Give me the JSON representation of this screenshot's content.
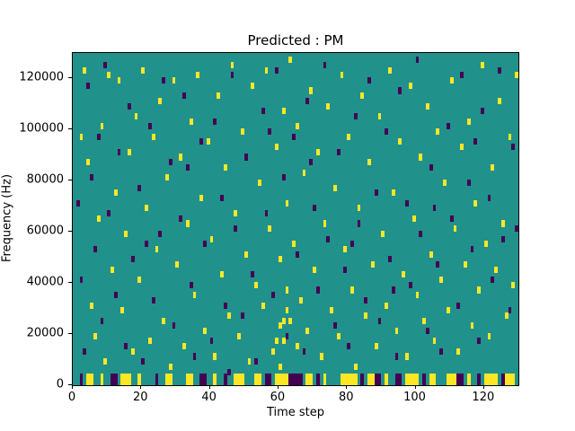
{
  "chart_data": {
    "type": "heatmap",
    "title": "Predicted : PM",
    "xlabel": "Time step",
    "ylabel": "Frequency (Hz)",
    "xlim": [
      0,
      130
    ],
    "ylim": [
      0,
      130000
    ],
    "x_ticks": [
      0,
      20,
      40,
      60,
      80,
      100,
      120
    ],
    "y_ticks": [
      0,
      20000,
      40000,
      60000,
      80000,
      100000,
      120000
    ],
    "grid": false,
    "legend": "none",
    "colors": {
      "background": "#21918c",
      "yellow": "#fde725",
      "purple": "#440154"
    },
    "cell": {
      "width_steps": 1,
      "height_hz": 2500,
      "bottom_height_hz": 4500
    },
    "yellow_cells": [
      [
        2,
        96000
      ],
      [
        3,
        122000
      ],
      [
        4,
        86000
      ],
      [
        5,
        30000
      ],
      [
        6,
        18000
      ],
      [
        7,
        64000
      ],
      [
        8,
        100000
      ],
      [
        9,
        8000
      ],
      [
        10,
        120000
      ],
      [
        11,
        44000
      ],
      [
        12,
        74000
      ],
      [
        13,
        118000
      ],
      [
        14,
        28000
      ],
      [
        15,
        58000
      ],
      [
        16,
        90000
      ],
      [
        17,
        12000
      ],
      [
        18,
        104000
      ],
      [
        19,
        40000
      ],
      [
        20,
        122000
      ],
      [
        21,
        68000
      ],
      [
        22,
        16000
      ],
      [
        23,
        96000
      ],
      [
        24,
        52000
      ],
      [
        25,
        110000
      ],
      [
        26,
        24000
      ],
      [
        27,
        80000
      ],
      [
        28,
        6000
      ],
      [
        29,
        118000
      ],
      [
        30,
        46000
      ],
      [
        31,
        88000
      ],
      [
        32,
        14000
      ],
      [
        33,
        62000
      ],
      [
        34,
        102000
      ],
      [
        35,
        34000
      ],
      [
        36,
        120000
      ],
      [
        37,
        72000
      ],
      [
        38,
        20000
      ],
      [
        39,
        94000
      ],
      [
        40,
        56000
      ],
      [
        41,
        10000
      ],
      [
        42,
        112000
      ],
      [
        43,
        42000
      ],
      [
        44,
        84000
      ],
      [
        45,
        26000
      ],
      [
        46,
        124000
      ],
      [
        47,
        66000
      ],
      [
        48,
        18000
      ],
      [
        49,
        98000
      ],
      [
        50,
        50000
      ],
      [
        51,
        8000
      ],
      [
        52,
        116000
      ],
      [
        53,
        38000
      ],
      [
        54,
        78000
      ],
      [
        55,
        30000
      ],
      [
        56,
        122000
      ],
      [
        57,
        60000
      ],
      [
        58,
        12000
      ],
      [
        59,
        92000
      ],
      [
        59,
        16000
      ],
      [
        60,
        48000
      ],
      [
        60,
        22000
      ],
      [
        60,
        6000
      ],
      [
        61,
        106000
      ],
      [
        61,
        16000
      ],
      [
        61,
        24000
      ],
      [
        62,
        36000
      ],
      [
        62,
        70000
      ],
      [
        62,
        28000
      ],
      [
        63,
        24000
      ],
      [
        63,
        126000
      ],
      [
        64,
        54000
      ],
      [
        65,
        14000
      ],
      [
        65,
        100000
      ],
      [
        66,
        32000
      ],
      [
        67,
        82000
      ],
      [
        68,
        20000
      ],
      [
        69,
        114000
      ],
      [
        70,
        44000
      ],
      [
        71,
        90000
      ],
      [
        72,
        10000
      ],
      [
        73,
        62000
      ],
      [
        74,
        108000
      ],
      [
        75,
        28000
      ],
      [
        76,
        76000
      ],
      [
        77,
        18000
      ],
      [
        78,
        120000
      ],
      [
        79,
        52000
      ],
      [
        80,
        96000
      ],
      [
        81,
        36000
      ],
      [
        82,
        6000
      ],
      [
        83,
        68000
      ],
      [
        84,
        112000
      ],
      [
        85,
        26000
      ],
      [
        86,
        86000
      ],
      [
        87,
        46000
      ],
      [
        88,
        14000
      ],
      [
        89,
        104000
      ],
      [
        90,
        58000
      ],
      [
        91,
        30000
      ],
      [
        92,
        122000
      ],
      [
        93,
        74000
      ],
      [
        94,
        20000
      ],
      [
        95,
        94000
      ],
      [
        96,
        42000
      ],
      [
        97,
        10000
      ],
      [
        98,
        116000
      ],
      [
        99,
        64000
      ],
      [
        100,
        34000
      ],
      [
        101,
        88000
      ],
      [
        102,
        24000
      ],
      [
        103,
        108000
      ],
      [
        104,
        50000
      ],
      [
        105,
        16000
      ],
      [
        106,
        98000
      ],
      [
        107,
        40000
      ],
      [
        108,
        78000
      ],
      [
        109,
        28000
      ],
      [
        110,
        118000
      ],
      [
        111,
        60000
      ],
      [
        112,
        12000
      ],
      [
        113,
        92000
      ],
      [
        114,
        46000
      ],
      [
        115,
        102000
      ],
      [
        116,
        22000
      ],
      [
        117,
        70000
      ],
      [
        118,
        36000
      ],
      [
        119,
        124000
      ],
      [
        120,
        54000
      ],
      [
        121,
        18000
      ],
      [
        122,
        84000
      ],
      [
        123,
        44000
      ],
      [
        124,
        110000
      ],
      [
        125,
        62000
      ],
      [
        126,
        26000
      ],
      [
        127,
        96000
      ],
      [
        128,
        38000
      ],
      [
        129,
        120000
      ]
    ],
    "purple_cells": [
      [
        1,
        70000
      ],
      [
        2,
        40000
      ],
      [
        3,
        12000
      ],
      [
        4,
        116000
      ],
      [
        5,
        80000
      ],
      [
        6,
        52000
      ],
      [
        7,
        96000
      ],
      [
        8,
        24000
      ],
      [
        9,
        124000
      ],
      [
        10,
        66000
      ],
      [
        12,
        34000
      ],
      [
        13,
        90000
      ],
      [
        15,
        14000
      ],
      [
        16,
        108000
      ],
      [
        17,
        48000
      ],
      [
        19,
        76000
      ],
      [
        20,
        8000
      ],
      [
        21,
        54000
      ],
      [
        22,
        100000
      ],
      [
        23,
        32000
      ],
      [
        25,
        58000
      ],
      [
        26,
        118000
      ],
      [
        28,
        86000
      ],
      [
        29,
        22000
      ],
      [
        31,
        64000
      ],
      [
        32,
        112000
      ],
      [
        33,
        84000
      ],
      [
        34,
        38000
      ],
      [
        35,
        10000
      ],
      [
        37,
        94000
      ],
      [
        38,
        54000
      ],
      [
        40,
        16000
      ],
      [
        41,
        102000
      ],
      [
        43,
        72000
      ],
      [
        44,
        30000
      ],
      [
        45,
        4000
      ],
      [
        46,
        120000
      ],
      [
        47,
        60000
      ],
      [
        49,
        26000
      ],
      [
        50,
        88000
      ],
      [
        52,
        42000
      ],
      [
        53,
        8000
      ],
      [
        55,
        106000
      ],
      [
        56,
        66000
      ],
      [
        57,
        98000
      ],
      [
        58,
        34000
      ],
      [
        59,
        122000
      ],
      [
        61,
        80000
      ],
      [
        62,
        18000
      ],
      [
        64,
        96000
      ],
      [
        65,
        50000
      ],
      [
        67,
        12000
      ],
      [
        68,
        110000
      ],
      [
        69,
        86000
      ],
      [
        70,
        68000
      ],
      [
        71,
        36000
      ],
      [
        73,
        124000
      ],
      [
        74,
        56000
      ],
      [
        76,
        22000
      ],
      [
        77,
        90000
      ],
      [
        79,
        44000
      ],
      [
        80,
        14000
      ],
      [
        81,
        54000
      ],
      [
        82,
        104000
      ],
      [
        83,
        62000
      ],
      [
        85,
        32000
      ],
      [
        86,
        118000
      ],
      [
        88,
        74000
      ],
      [
        89,
        24000
      ],
      [
        91,
        98000
      ],
      [
        92,
        48000
      ],
      [
        93,
        36000
      ],
      [
        94,
        10000
      ],
      [
        95,
        114000
      ],
      [
        97,
        70000
      ],
      [
        98,
        38000
      ],
      [
        100,
        126000
      ],
      [
        101,
        58000
      ],
      [
        103,
        20000
      ],
      [
        104,
        84000
      ],
      [
        105,
        68000
      ],
      [
        106,
        46000
      ],
      [
        107,
        12000
      ],
      [
        109,
        100000
      ],
      [
        110,
        64000
      ],
      [
        112,
        30000
      ],
      [
        113,
        120000
      ],
      [
        115,
        78000
      ],
      [
        116,
        52000
      ],
      [
        117,
        94000
      ],
      [
        118,
        16000
      ],
      [
        119,
        106000
      ],
      [
        121,
        72000
      ],
      [
        122,
        40000
      ],
      [
        124,
        122000
      ],
      [
        125,
        56000
      ],
      [
        127,
        28000
      ],
      [
        128,
        92000
      ],
      [
        129,
        60000
      ]
    ],
    "bottom_yellow_bars": [
      [
        4,
        2
      ],
      [
        8,
        1
      ],
      [
        14,
        3
      ],
      [
        19,
        1
      ],
      [
        27,
        2
      ],
      [
        33,
        2
      ],
      [
        41,
        1
      ],
      [
        47,
        3
      ],
      [
        53,
        2
      ],
      [
        59,
        4
      ],
      [
        68,
        2
      ],
      [
        73,
        1
      ],
      [
        78,
        5
      ],
      [
        86,
        2
      ],
      [
        91,
        1
      ],
      [
        97,
        4
      ],
      [
        104,
        2
      ],
      [
        109,
        3
      ],
      [
        115,
        1
      ],
      [
        120,
        4
      ],
      [
        126,
        3
      ]
    ],
    "bottom_purple_bars": [
      [
        2,
        1
      ],
      [
        11,
        2
      ],
      [
        24,
        1
      ],
      [
        37,
        2
      ],
      [
        44,
        1
      ],
      [
        56,
        2
      ],
      [
        63,
        4
      ],
      [
        71,
        1
      ],
      [
        84,
        1
      ],
      [
        88,
        2
      ],
      [
        94,
        2
      ],
      [
        102,
        1
      ],
      [
        112,
        2
      ],
      [
        118,
        1
      ],
      [
        125,
        1
      ]
    ]
  }
}
